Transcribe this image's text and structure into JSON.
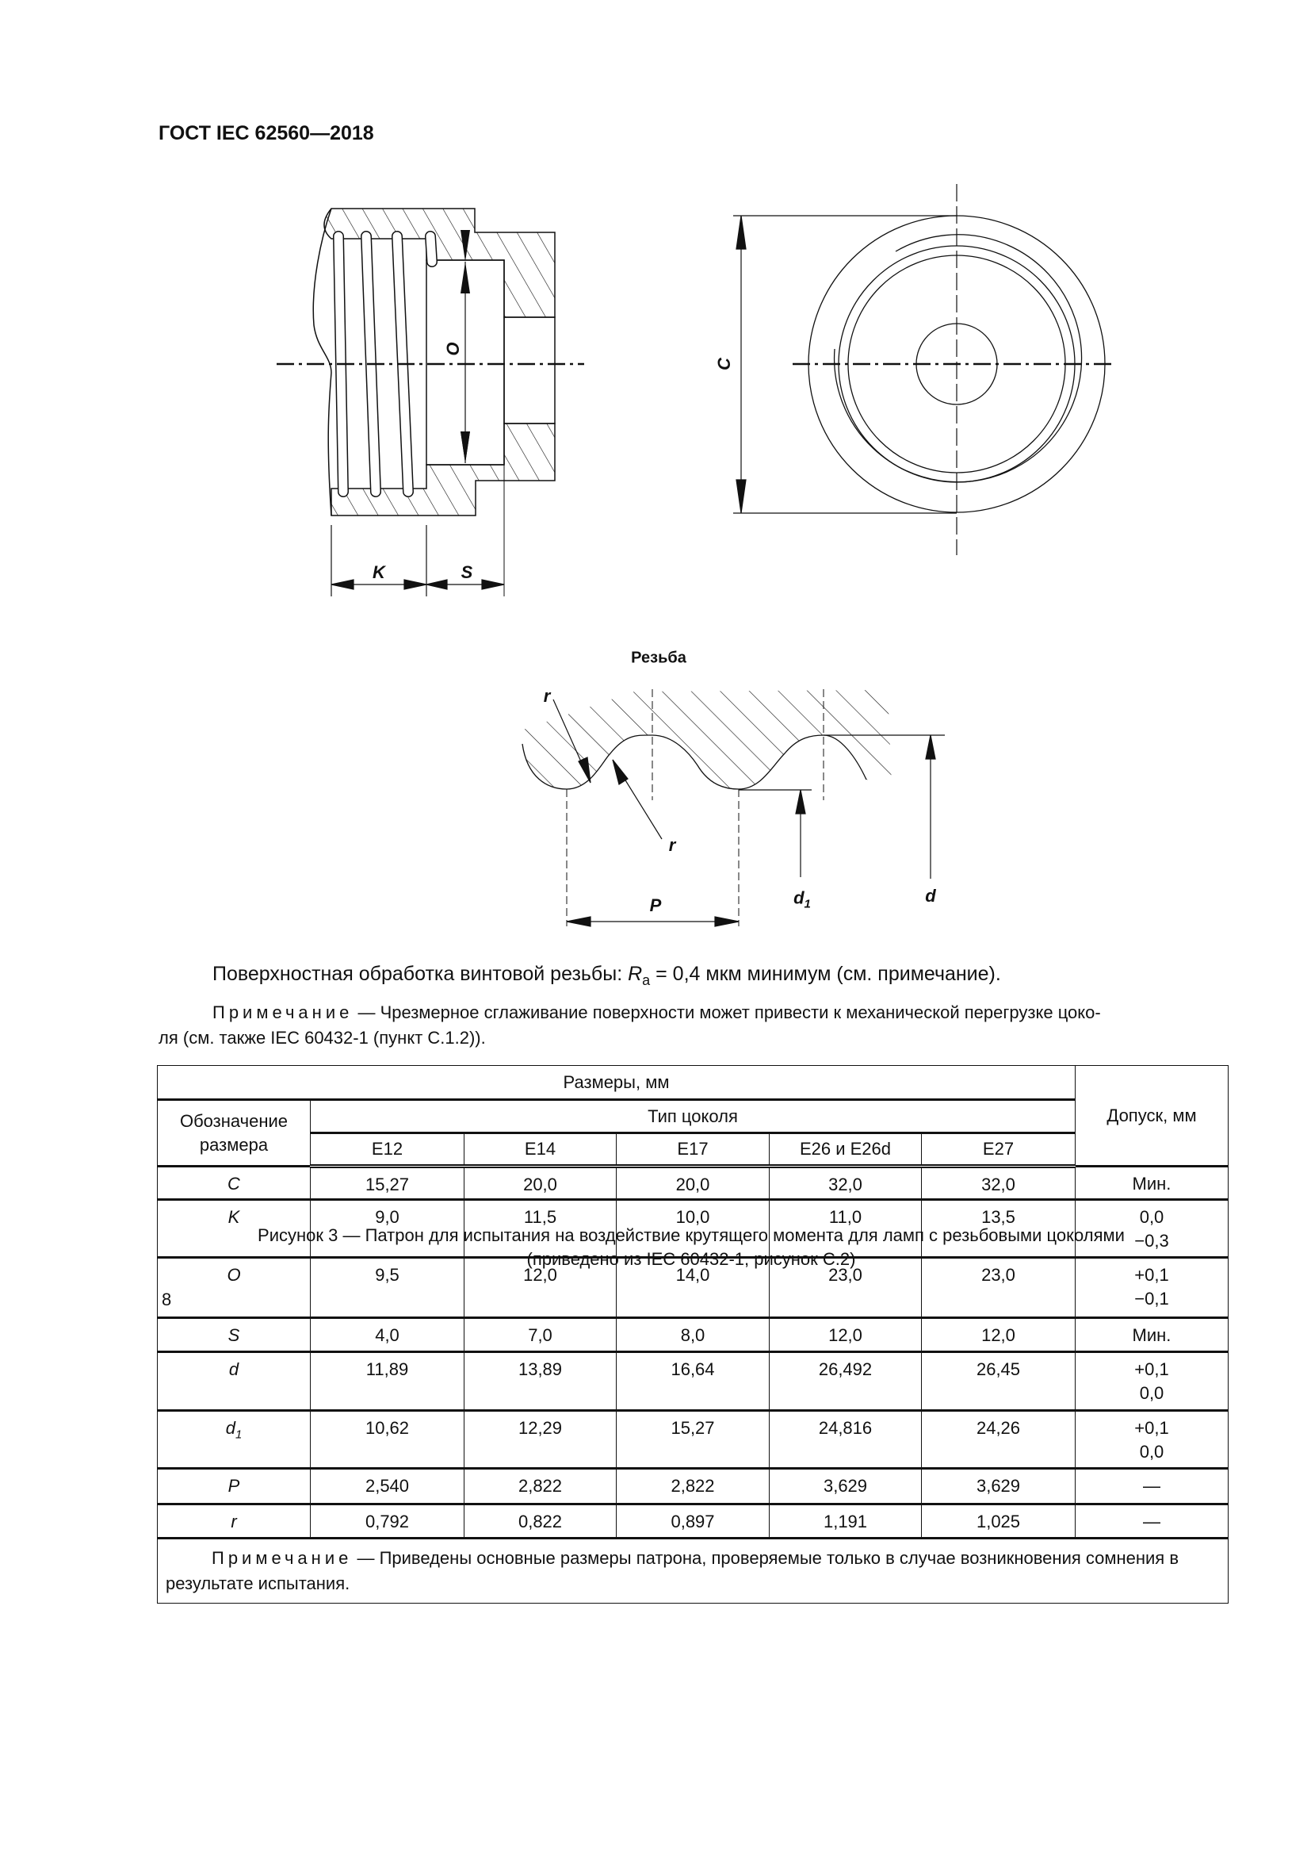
{
  "header": {
    "title": "ГОСТ IEC 62560—2018"
  },
  "drawing": {
    "labels": {
      "O": "O",
      "C": "C",
      "K": "K",
      "S": "S",
      "r": "r",
      "P": "P",
      "d": "d",
      "d1_base": "d",
      "d1_sub": "1"
    },
    "thread_title": "Резьба"
  },
  "surface": {
    "prefix": "Поверхностная обработка винтовой резьбы: ",
    "symbol": "R",
    "symbol_sub": "a",
    "suffix": " = 0,4 мкм минимум (см. примечание)."
  },
  "note1": {
    "label": "Примечание",
    "line1": " — Чрезмерное сглаживание поверхности может привести к механической перегрузке цоко-",
    "line2": "ля (см. также IEC 60432-1 (пункт С.1.2))."
  },
  "table": {
    "group_header": "Размеры, мм",
    "designation_header": "Обозначение размера",
    "type_header": "Тип цоколя",
    "tolerance_header": "Допуск, мм",
    "types": [
      "E12",
      "E14",
      "E17",
      "E26 и E26d",
      "E27"
    ],
    "rows": [
      {
        "des": "C",
        "sub": "",
        "values": [
          "15,27",
          "20,0",
          "20,0",
          "32,0",
          "32,0"
        ],
        "tol1": "Мин.",
        "tol2": ""
      },
      {
        "des": "K",
        "sub": "",
        "values": [
          "9,0",
          "11,5",
          "10,0",
          "11,0",
          "13,5"
        ],
        "tol1": "0,0",
        "tol2": "−0,3"
      },
      {
        "des": "O",
        "sub": "",
        "values": [
          "9,5",
          "12,0",
          "14,0",
          "23,0",
          "23,0"
        ],
        "tol1": "+0,1",
        "tol2": "−0,1"
      },
      {
        "des": "S",
        "sub": "",
        "values": [
          "4,0",
          "7,0",
          "8,0",
          "12,0",
          "12,0"
        ],
        "tol1": "Мин.",
        "tol2": ""
      },
      {
        "des": "d",
        "sub": "",
        "values": [
          "11,89",
          "13,89",
          "16,64",
          "26,492",
          "26,45"
        ],
        "tol1": "+0,1",
        "tol2": "0,0"
      },
      {
        "des": "d",
        "sub": "1",
        "values": [
          "10,62",
          "12,29",
          "15,27",
          "24,816",
          "24,26"
        ],
        "tol1": "+0,1",
        "tol2": "0,0"
      },
      {
        "des": "P",
        "sub": "",
        "values": [
          "2,540",
          "2,822",
          "2,822",
          "3,629",
          "3,629"
        ],
        "tol1": "—",
        "tol2": ""
      },
      {
        "des": "r",
        "sub": "",
        "values": [
          "0,792",
          "0,822",
          "0,897",
          "1,191",
          "1,025"
        ],
        "tol1": "—",
        "tol2": ""
      }
    ],
    "note_label": "Примечание",
    "note_text": " — Приведены основные размеры патрона, проверяемые только в случае возникновения сомнения в результате испытания."
  },
  "caption": {
    "line1": "Рисунок 3 — Патрон для испытания на воздействие крутящего момента для ламп с резьбовыми цоколями",
    "line2": "(приведено из IEC 60432-1, рисунок С.2)"
  },
  "page_number": "8"
}
